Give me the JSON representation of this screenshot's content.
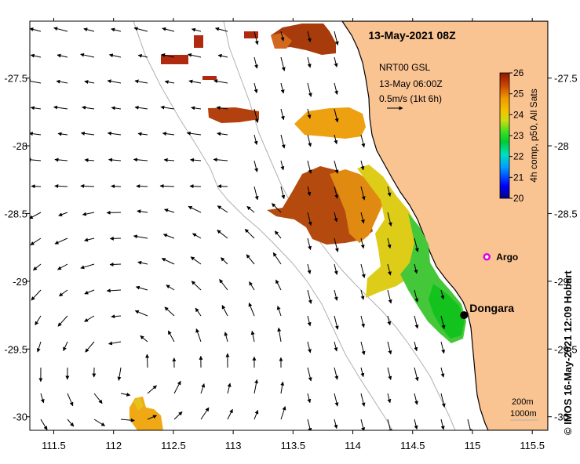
{
  "map": {
    "title": "13-May-2021 08Z",
    "product_line1": "NRT00 GSL",
    "product_line2": "13-May 06:00Z",
    "product_line3": "0.5m/s (1kt 6h)",
    "credit": "© IMOS 16-May-2021 12:09 Hobart",
    "place_label": "Dongara",
    "argo_label": "Argo",
    "isobath_labels": [
      "200m",
      "1000m"
    ],
    "x_ticks": [
      "111.5",
      "112",
      "112.5",
      "113",
      "113.5",
      "114",
      "114.5",
      "115",
      "115.5"
    ],
    "y_ticks": [
      "-27.5",
      "-28",
      "-28.5",
      "-29",
      "-29.5",
      "-30"
    ],
    "lon_range": [
      111.3,
      115.63
    ],
    "lat_range": [
      -30.1,
      -27.08
    ],
    "colors": {
      "land": "#fac392",
      "argo_marker": "#e000e0",
      "city_marker": "#000000",
      "isobath": "#b0b0b0"
    },
    "colorbar": {
      "label": "4h comp, p50, All Sats",
      "ticks": [
        "26",
        "25",
        "24",
        "23",
        "22",
        "21",
        "20"
      ],
      "range": [
        20,
        26
      ]
    },
    "city": {
      "name": "Dongara",
      "lon": 114.93,
      "lat": -29.25
    },
    "argo": {
      "name": "Argo",
      "lon": 115.12,
      "lat": -28.82
    }
  }
}
